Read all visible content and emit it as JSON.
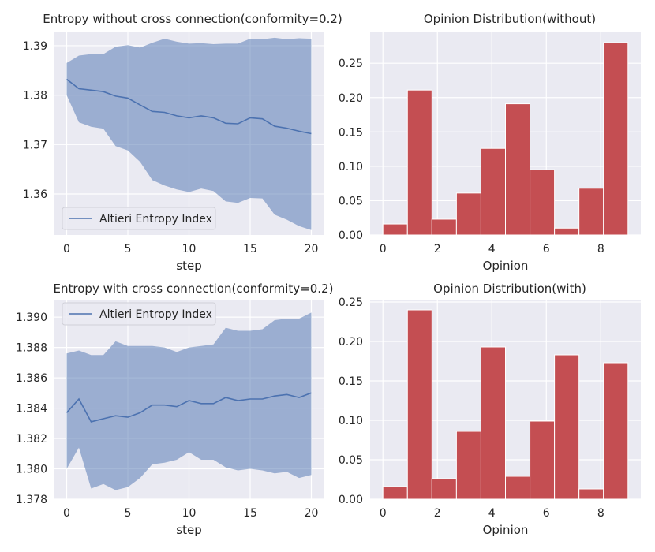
{
  "colors": {
    "background": "#eaeaf2",
    "grid": "#ffffff",
    "line": "#4c72b0",
    "band": "#4c72b0",
    "bar": "#c44e52",
    "bar_edge": "#ffffff"
  },
  "chart_data": [
    {
      "id": "entropy-without",
      "type": "line",
      "title": "Entropy without cross connection(conformity=0.2)",
      "xlabel": "step",
      "ylabel": "",
      "xlim": [
        -1,
        21
      ],
      "ylim": [
        1.3517,
        1.3927
      ],
      "xticks": [
        0,
        5,
        10,
        15,
        20
      ],
      "yticks": [
        1.36,
        1.37,
        1.38,
        1.39
      ],
      "ytick_labels": [
        "1.36",
        "1.37",
        "1.38",
        "1.39"
      ],
      "legend": {
        "label": "Altieri Entropy Index",
        "position": "lower-left"
      },
      "x": [
        0,
        1,
        2,
        3,
        4,
        5,
        6,
        7,
        8,
        9,
        10,
        11,
        12,
        13,
        14,
        15,
        16,
        17,
        18,
        19,
        20
      ],
      "series": [
        {
          "name": "Altieri Entropy Index",
          "values": [
            1.3832,
            1.3813,
            1.381,
            1.3807,
            1.3798,
            1.3794,
            1.378,
            1.3767,
            1.3765,
            1.3758,
            1.3754,
            1.3758,
            1.3754,
            1.3743,
            1.3742,
            1.3754,
            1.3752,
            1.3737,
            1.3733,
            1.3727,
            1.3722
          ],
          "upper": [
            1.3865,
            1.388,
            1.3883,
            1.3883,
            1.3898,
            1.3901,
            1.3896,
            1.3906,
            1.3914,
            1.3908,
            1.3904,
            1.3905,
            1.3903,
            1.3904,
            1.3904,
            1.3914,
            1.3913,
            1.3916,
            1.3913,
            1.3915,
            1.3914
          ],
          "lower": [
            1.38,
            1.3745,
            1.3736,
            1.3732,
            1.3697,
            1.3688,
            1.3665,
            1.3628,
            1.3617,
            1.3609,
            1.3604,
            1.3611,
            1.3606,
            1.3585,
            1.3582,
            1.3592,
            1.3591,
            1.3558,
            1.3548,
            1.3535,
            1.3527
          ]
        }
      ]
    },
    {
      "id": "opinion-without",
      "type": "bar",
      "title": "Opinion Distribution(without)",
      "xlabel": "Opinion",
      "ylabel": "",
      "xlim": [
        -0.47,
        9.47
      ],
      "ylim": [
        0,
        0.295
      ],
      "xticks": [
        0,
        2,
        4,
        6,
        8
      ],
      "yticks": [
        0.0,
        0.05,
        0.1,
        0.15,
        0.2,
        0.25
      ],
      "ytick_labels": [
        "0.00",
        "0.05",
        "0.10",
        "0.15",
        "0.20",
        "0.25"
      ],
      "bin_edges": [
        0,
        0.9,
        1.8,
        2.7,
        3.6,
        4.5,
        5.4,
        6.3,
        7.2,
        8.1,
        9.0
      ],
      "values": [
        0.016,
        0.211,
        0.023,
        0.061,
        0.126,
        0.191,
        0.095,
        0.01,
        0.068,
        0.28
      ]
    },
    {
      "id": "entropy-with",
      "type": "line",
      "title": "Entropy with cross connection(conformity=0.2)",
      "xlabel": "step",
      "ylabel": "",
      "xlim": [
        -1,
        21
      ],
      "ylim": [
        1.378,
        1.3911
      ],
      "xticks": [
        0,
        5,
        10,
        15,
        20
      ],
      "yticks": [
        1.378,
        1.38,
        1.382,
        1.384,
        1.386,
        1.388,
        1.39
      ],
      "ytick_labels": [
        "1.378",
        "1.380",
        "1.382",
        "1.384",
        "1.386",
        "1.388",
        "1.390"
      ],
      "legend": {
        "label": "Altieri Entropy Index",
        "position": "upper-left"
      },
      "x": [
        0,
        1,
        2,
        3,
        4,
        5,
        6,
        7,
        8,
        9,
        10,
        11,
        12,
        13,
        14,
        15,
        16,
        17,
        18,
        19,
        20
      ],
      "series": [
        {
          "name": "Altieri Entropy Index",
          "values": [
            1.3837,
            1.3846,
            1.3831,
            1.3833,
            1.3835,
            1.3834,
            1.3837,
            1.3842,
            1.3842,
            1.3841,
            1.3845,
            1.3843,
            1.3843,
            1.3847,
            1.3845,
            1.3846,
            1.3846,
            1.3848,
            1.3849,
            1.3847,
            1.385
          ],
          "upper": [
            1.3876,
            1.3878,
            1.3875,
            1.3875,
            1.3884,
            1.3881,
            1.3881,
            1.3881,
            1.388,
            1.3877,
            1.388,
            1.3881,
            1.3882,
            1.3893,
            1.3891,
            1.3891,
            1.3892,
            1.3898,
            1.3899,
            1.3899,
            1.3903
          ],
          "lower": [
            1.38,
            1.3814,
            1.3787,
            1.379,
            1.3786,
            1.3788,
            1.3794,
            1.3803,
            1.3804,
            1.3806,
            1.3811,
            1.3806,
            1.3806,
            1.3801,
            1.3799,
            1.38,
            1.3799,
            1.3797,
            1.3798,
            1.3794,
            1.3796
          ]
        }
      ]
    },
    {
      "id": "opinion-with",
      "type": "bar",
      "title": "Opinion Distribution(with)",
      "xlabel": "Opinion",
      "ylabel": "",
      "xlim": [
        -0.47,
        9.47
      ],
      "ylim": [
        0,
        0.252
      ],
      "xticks": [
        0,
        2,
        4,
        6,
        8
      ],
      "yticks": [
        0.0,
        0.05,
        0.1,
        0.15,
        0.2,
        0.25
      ],
      "ytick_labels": [
        "0.00",
        "0.05",
        "0.10",
        "0.15",
        "0.20",
        "0.25"
      ],
      "bin_edges": [
        0,
        0.9,
        1.8,
        2.7,
        3.6,
        4.5,
        5.4,
        6.3,
        7.2,
        8.1,
        9.0
      ],
      "values": [
        0.016,
        0.24,
        0.026,
        0.086,
        0.193,
        0.029,
        0.099,
        0.183,
        0.013,
        0.173
      ]
    }
  ]
}
